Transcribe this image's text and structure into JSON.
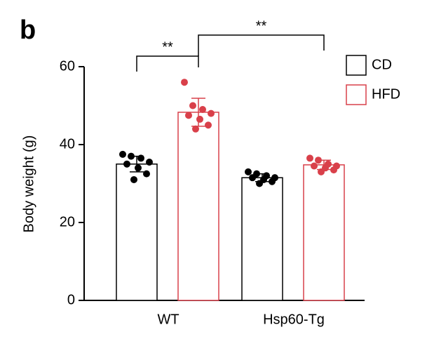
{
  "chart_data": {
    "type": "bar",
    "panel_label": "b",
    "y_label": "Body weight (g)",
    "categories": [
      "WT",
      "Hsp60-Tg"
    ],
    "series": [
      {
        "name": "CD",
        "color": "#000000",
        "values": [
          35,
          31.5
        ],
        "errors": [
          2,
          1
        ],
        "points": [
          [
            37.5,
            37,
            36.5,
            35.5,
            35,
            34,
            32.5,
            31
          ],
          [
            33,
            32.5,
            32,
            31.5,
            31.5,
            31,
            30.5,
            30
          ]
        ]
      },
      {
        "name": "HFD",
        "color": "#d9404a",
        "values": [
          48.3,
          34.8
        ],
        "errors": [
          3.6,
          1.2
        ],
        "points": [
          [
            56,
            50,
            49,
            48,
            47.5,
            46.5,
            45,
            44
          ],
          [
            36.5,
            36,
            35,
            34.5,
            34.5,
            34,
            33.5,
            33
          ]
        ]
      }
    ],
    "ylim": [
      0,
      60
    ],
    "yticks": [
      0,
      20,
      40,
      60
    ],
    "annotations": [
      "**",
      "**"
    ]
  }
}
